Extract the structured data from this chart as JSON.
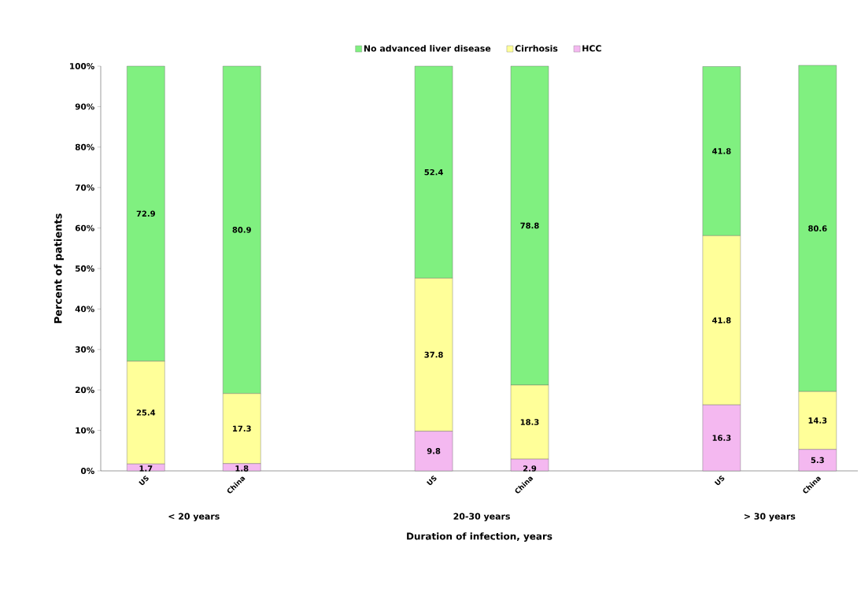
{
  "chart_data": {
    "type": "bar",
    "stacked": true,
    "xlabel": "Duration of infection, years",
    "ylabel": "Percent of patients",
    "categories": [
      "US",
      "China",
      null,
      "US",
      "China",
      null,
      "US",
      "China"
    ],
    "series": [
      {
        "name": "HCC",
        "color": "#f4b8f0",
        "values": [
          1.7,
          1.8,
          null,
          9.8,
          2.9,
          null,
          16.3,
          5.3
        ]
      },
      {
        "name": "Cirrhosis",
        "color": "#ffff99",
        "values": [
          25.4,
          17.3,
          null,
          37.8,
          18.3,
          null,
          41.8,
          14.3
        ]
      },
      {
        "name": "No advanced liver disease",
        "color": "#80f080",
        "values": [
          72.9,
          80.9,
          null,
          52.4,
          78.8,
          null,
          41.8,
          80.6
        ]
      }
    ],
    "ylim": [
      0,
      100
    ],
    "yticks": [
      {
        "value": 0,
        "label": "0%"
      },
      {
        "value": 10,
        "label": "10%"
      },
      {
        "value": 20,
        "label": "20%"
      },
      {
        "value": 30,
        "label": "30%"
      },
      {
        "value": 40,
        "label": "40%"
      },
      {
        "value": 50,
        "label": "50%"
      },
      {
        "value": 60,
        "label": "60%"
      },
      {
        "value": 70,
        "label": "70%"
      },
      {
        "value": 80,
        "label": "80%"
      },
      {
        "value": 90,
        "label": "90%"
      },
      {
        "value": 100,
        "label": "100%"
      }
    ],
    "data_labels": true,
    "legend": "top",
    "grid": false,
    "annotations": [
      "< 20 years",
      "20-30 years",
      "> 30 years"
    ]
  }
}
